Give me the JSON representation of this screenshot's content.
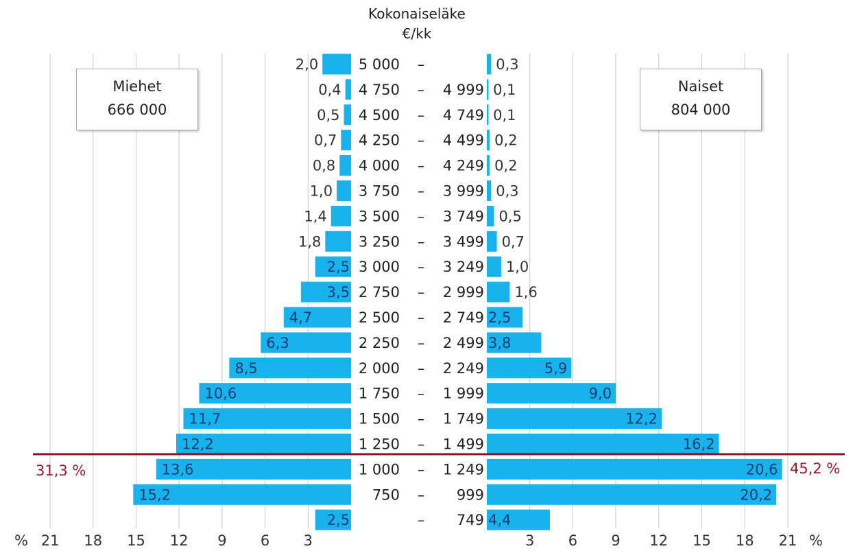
{
  "chart_data": {
    "type": "bar",
    "orientation": "horizontal",
    "layout": "population-pyramid",
    "title_lines": [
      "Kokonaiseläke",
      "€/kk"
    ],
    "categories": [
      [
        "5 000",
        "–",
        ""
      ],
      [
        "4 750",
        "–",
        "4 999"
      ],
      [
        "4 500",
        "–",
        "4 749"
      ],
      [
        "4 250",
        "–",
        "4 499"
      ],
      [
        "4 000",
        "–",
        "4 249"
      ],
      [
        "3 750",
        "–",
        "3 999"
      ],
      [
        "3 500",
        "–",
        "3 749"
      ],
      [
        "3 250",
        "–",
        "3 499"
      ],
      [
        "3 000",
        "–",
        "3 249"
      ],
      [
        "2 750",
        "–",
        "2 999"
      ],
      [
        "2 500",
        "–",
        "2 749"
      ],
      [
        "2 250",
        "–",
        "2 499"
      ],
      [
        "2 000",
        "–",
        "2 249"
      ],
      [
        "1 750",
        "–",
        "1 999"
      ],
      [
        "1 500",
        "–",
        "1 749"
      ],
      [
        "1 250",
        "–",
        "1 499"
      ],
      [
        "1 000",
        "–",
        "1 249"
      ],
      [
        "750",
        "–",
        "999"
      ],
      [
        "",
        "–",
        "749"
      ]
    ],
    "series": [
      {
        "side": "left",
        "values": [
          2.0,
          0.4,
          0.5,
          0.7,
          0.8,
          1.0,
          1.4,
          1.8,
          2.5,
          3.5,
          4.7,
          6.3,
          8.5,
          10.6,
          11.7,
          12.2,
          13.6,
          15.2,
          2.5
        ],
        "labels": [
          "2,0",
          "0,4",
          "0,5",
          "0,7",
          "0,8",
          "1,0",
          "1,4",
          "1,8",
          "2,5",
          "3,5",
          "4,7",
          "6,3",
          "8,5",
          "10,6",
          "11,7",
          "12,2",
          "13,6",
          "15,2",
          "2,5"
        ]
      },
      {
        "side": "right",
        "values": [
          0.3,
          0.1,
          0.1,
          0.2,
          0.2,
          0.3,
          0.5,
          0.7,
          1.0,
          1.6,
          2.5,
          3.8,
          5.9,
          9.0,
          12.2,
          16.2,
          20.6,
          20.2,
          4.4
        ],
        "labels": [
          "0,3",
          "0,1",
          "0,1",
          "0,2",
          "0,2",
          "0,3",
          "0,5",
          "0,7",
          "1,0",
          "1,6",
          "2,5",
          "3,8",
          "5,9",
          "9,0",
          "12,2",
          "16,2",
          "20,6",
          "20,2",
          "4,4"
        ]
      }
    ],
    "xlim": [
      0,
      21
    ],
    "xticks": [
      3,
      6,
      9,
      12,
      15,
      18,
      21
    ],
    "xtick_labels": [
      "3",
      "6",
      "9",
      "12",
      "15",
      "18",
      "21"
    ],
    "xunit": "%",
    "grid": true,
    "threshold_line": {
      "between": [
        "1 000 – 1 249",
        "1 250 – 1 499"
      ]
    },
    "colors": {
      "bar": "#18b3ec",
      "bar_text_inside": "#1d3b6e",
      "label_outside": "#333333",
      "threshold": "#8b1024",
      "grid": "#c8c8c8"
    }
  },
  "legend": {
    "men": {
      "name": "Miehet",
      "count": "666 000"
    },
    "women": {
      "name": "Naiset",
      "count": "804 000"
    }
  },
  "annotations": {
    "men_below_threshold": "31,3 %",
    "women_below_threshold": "45,2 %"
  }
}
